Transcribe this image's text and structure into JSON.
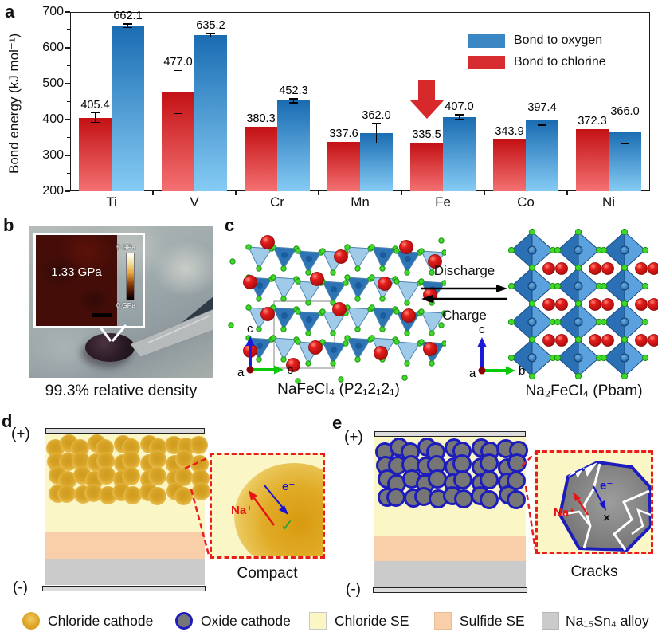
{
  "panel_letters": {
    "a": "a",
    "b": "b",
    "c": "c",
    "d": "d",
    "e": "e"
  },
  "colors": {
    "oxygen_blue": "#3a87c4",
    "chlorine_red": "#d62b2f",
    "blue_bar_top": "#1a6cb2",
    "blue_bar_bottom": "#85cbf4",
    "red_bar_top": "#c31114",
    "red_bar_bottom": "#f47172",
    "arrow_red": "#d7282c",
    "inset_border_red": "#ea1c1c",
    "chloride_se": "#fbf6c6",
    "sulfide_se": "#f8cfa8",
    "alloy_gray": "#cbcbcb",
    "oxide_gray": "#767676",
    "oxide_border": "#1d1dbe"
  },
  "chart": {
    "ylabel": "Bond energy (kJ mol⁻¹)",
    "legend": [
      {
        "label": "Bond to oxygen"
      },
      {
        "label": "Bond to chlorine"
      }
    ]
  },
  "chart_data": {
    "type": "bar",
    "categories": [
      "Ti",
      "V",
      "Cr",
      "Mn",
      "Fe",
      "Co",
      "Ni"
    ],
    "series": [
      {
        "name": "Bond to chlorine",
        "color_key": "red",
        "values": [
          405.4,
          477.0,
          380.3,
          337.6,
          335.5,
          343.9,
          372.3
        ],
        "errors": [
          13,
          60,
          0,
          0,
          0,
          0,
          0
        ]
      },
      {
        "name": "Bond to oxygen",
        "color_key": "blue",
        "values": [
          662.1,
          635.2,
          452.3,
          362.0,
          407.0,
          397.4,
          366.0
        ],
        "errors": [
          5,
          5,
          6,
          28,
          6,
          13,
          33
        ]
      }
    ],
    "ylim": [
      200,
      700
    ],
    "yticks": [
      200,
      300,
      400,
      500,
      600,
      700
    ],
    "grid": false,
    "legend_position": "upper right",
    "annotation": {
      "type": "down-arrow",
      "category": "Fe",
      "series": "Bond to chlorine"
    }
  },
  "panel_b": {
    "inset_value": "1.33 GPa",
    "scale_max": "5 GPa",
    "scale_min": "0 GPa",
    "caption": "99.3% relative density"
  },
  "panel_c": {
    "forward_label": "Discharge",
    "backward_label": "Charge",
    "left_label": "NaFeCl₄ (P2₁2₁2₁)",
    "right_label": "Na₂FeCl₄ (Pbam)",
    "axis_up": "c",
    "axis_right": "b",
    "axis_origin": "a"
  },
  "panel_d": {
    "plus": "(+)",
    "minus": "(-)",
    "ion_label": "Na⁺",
    "electron_label": "e⁻",
    "ok_mark": "✓",
    "caption": "Compact"
  },
  "panel_e": {
    "plus": "(+)",
    "minus": "(-)",
    "ion_label": "Na⁺",
    "electron_label": "e⁻",
    "fail_mark": "×",
    "caption": "Cracks"
  },
  "bottom_legend": {
    "items": [
      {
        "label": "Chloride cathode",
        "swatch": "gold-circle"
      },
      {
        "label": "Oxide cathode",
        "swatch": "oxide-circle"
      },
      {
        "label": "Chloride SE",
        "swatch": "chloride-square"
      },
      {
        "label": "Sulfide SE",
        "swatch": "sulfide-square"
      },
      {
        "label": "Na₁₅Sn₄ alloy",
        "swatch": "gray-square"
      }
    ]
  }
}
